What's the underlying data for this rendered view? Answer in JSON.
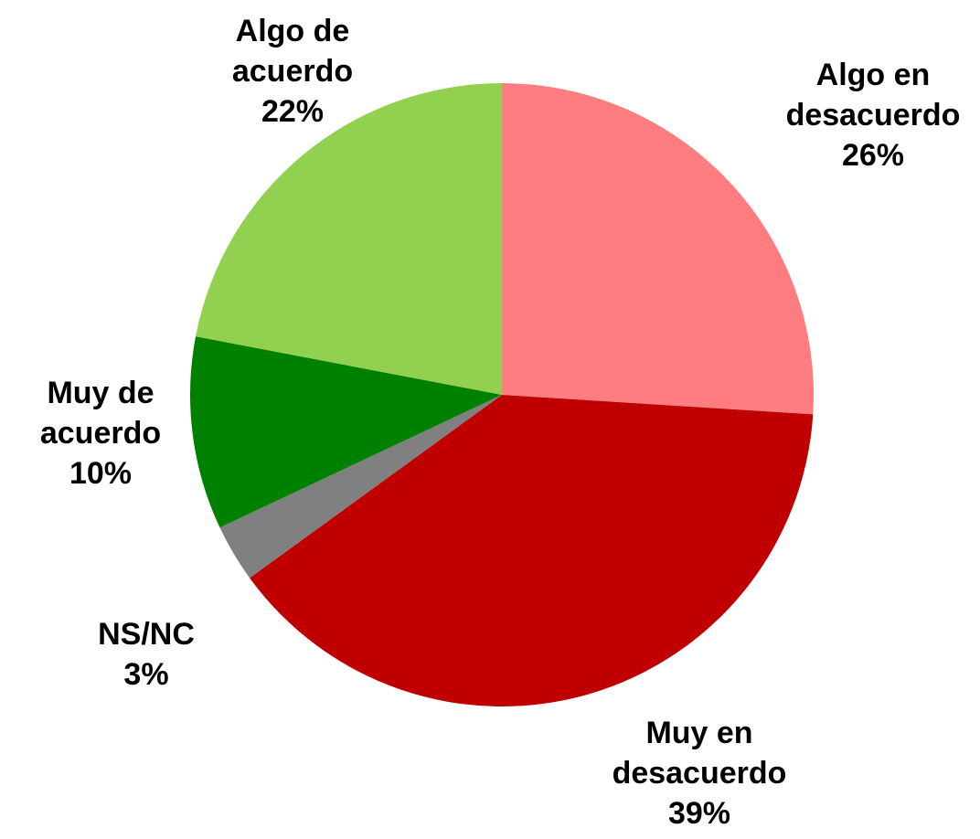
{
  "chart_data": {
    "type": "pie",
    "categories": [
      "Algo en desacuerdo",
      "Muy en desacuerdo",
      "NS/NC",
      "Muy de acuerdo",
      "Algo de acuerdo"
    ],
    "values": [
      26,
      39,
      3,
      10,
      22
    ],
    "value_labels": [
      "26%",
      "39%",
      "3%",
      "10%",
      "22%"
    ],
    "colors": [
      "#ff7c80",
      "#c00000",
      "#808080",
      "#008000",
      "#92d050"
    ],
    "start_angle": 0,
    "direction": "clockwise"
  }
}
